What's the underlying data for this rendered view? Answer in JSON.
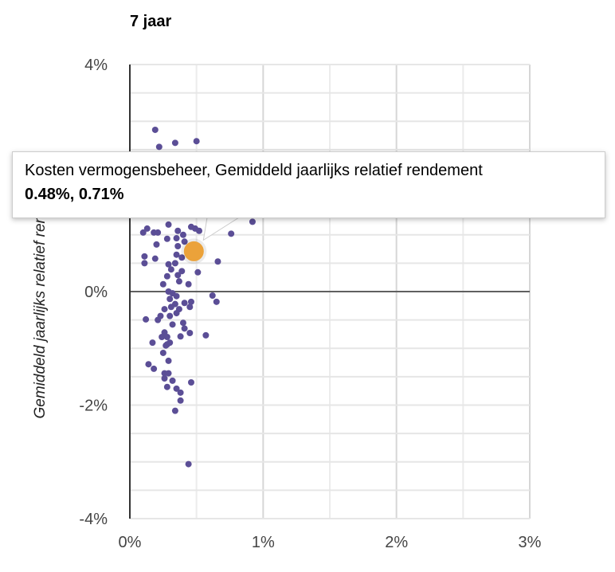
{
  "chart_data": {
    "type": "scatter",
    "title": "7 jaar",
    "xlabel": "Kosten vermogensbeheer",
    "ylabel": "Gemiddeld jaarlijks relatief rendement",
    "xlim": [
      0,
      3
    ],
    "ylim": [
      -4,
      4
    ],
    "x_ticks": [
      "0%",
      "1%",
      "2%",
      "3%"
    ],
    "y_ticks": [
      "4%",
      "0%",
      "-2%",
      "-4%"
    ],
    "grid": true,
    "colors": {
      "points": "#5b4e96",
      "highlight": "#eba23a"
    },
    "points": [
      [
        0.19,
        2.85
      ],
      [
        0.22,
        2.55
      ],
      [
        0.34,
        2.62
      ],
      [
        0.5,
        2.65
      ],
      [
        0.1,
        1.04
      ],
      [
        0.13,
        1.11
      ],
      [
        0.18,
        1.04
      ],
      [
        0.21,
        1.04
      ],
      [
        0.29,
        1.18
      ],
      [
        0.36,
        1.07
      ],
      [
        0.4,
        1.0
      ],
      [
        0.46,
        1.14
      ],
      [
        0.49,
        1.11
      ],
      [
        0.52,
        1.07
      ],
      [
        0.63,
        1.18
      ],
      [
        0.76,
        1.02
      ],
      [
        0.92,
        1.23
      ],
      [
        0.28,
        0.93
      ],
      [
        0.35,
        0.94
      ],
      [
        0.2,
        0.83
      ],
      [
        0.41,
        0.88
      ],
      [
        0.36,
        0.8
      ],
      [
        0.11,
        0.62
      ],
      [
        0.11,
        0.5
      ],
      [
        0.19,
        0.58
      ],
      [
        0.35,
        0.65
      ],
      [
        0.39,
        0.6
      ],
      [
        0.47,
        0.6
      ],
      [
        0.66,
        0.53
      ],
      [
        0.29,
        0.48
      ],
      [
        0.34,
        0.5
      ],
      [
        0.31,
        0.39
      ],
      [
        0.39,
        0.36
      ],
      [
        0.51,
        0.34
      ],
      [
        0.28,
        0.27
      ],
      [
        0.36,
        0.29
      ],
      [
        0.37,
        0.18
      ],
      [
        0.25,
        0.13
      ],
      [
        0.44,
        0.13
      ],
      [
        0.29,
        0.0
      ],
      [
        0.32,
        -0.03
      ],
      [
        0.35,
        -0.08
      ],
      [
        0.3,
        -0.13
      ],
      [
        0.62,
        -0.07
      ],
      [
        0.65,
        -0.18
      ],
      [
        0.41,
        -0.2
      ],
      [
        0.46,
        -0.18
      ],
      [
        0.34,
        -0.22
      ],
      [
        0.31,
        -0.27
      ],
      [
        0.26,
        -0.31
      ],
      [
        0.37,
        -0.31
      ],
      [
        0.45,
        -0.27
      ],
      [
        0.35,
        -0.38
      ],
      [
        0.12,
        -0.49
      ],
      [
        0.23,
        -0.43
      ],
      [
        0.21,
        -0.5
      ],
      [
        0.3,
        -0.43
      ],
      [
        0.32,
        -0.58
      ],
      [
        0.4,
        -0.55
      ],
      [
        0.41,
        -0.65
      ],
      [
        0.45,
        -0.73
      ],
      [
        0.26,
        -0.72
      ],
      [
        0.28,
        -0.8
      ],
      [
        0.24,
        -0.8
      ],
      [
        0.38,
        -0.79
      ],
      [
        0.57,
        -0.77
      ],
      [
        0.17,
        -0.9
      ],
      [
        0.28,
        -0.93
      ],
      [
        0.3,
        -0.9
      ],
      [
        0.27,
        -0.95
      ],
      [
        0.25,
        -1.08
      ],
      [
        0.29,
        -1.22
      ],
      [
        0.14,
        -1.28
      ],
      [
        0.18,
        -1.36
      ],
      [
        0.26,
        -1.44
      ],
      [
        0.29,
        -1.44
      ],
      [
        0.26,
        -1.53
      ],
      [
        0.32,
        -1.57
      ],
      [
        0.46,
        -1.6
      ],
      [
        0.28,
        -1.68
      ],
      [
        0.35,
        -1.71
      ],
      [
        0.38,
        -1.78
      ],
      [
        0.38,
        -1.92
      ],
      [
        0.34,
        -2.1
      ],
      [
        0.44,
        -3.04
      ]
    ],
    "highlight": [
      0.48,
      0.71
    ]
  },
  "tooltip": {
    "line1": "Kosten vermogensbeheer, Gemiddeld jaarlijks relatief rendement",
    "line2": "0.48%, 0.71%"
  }
}
